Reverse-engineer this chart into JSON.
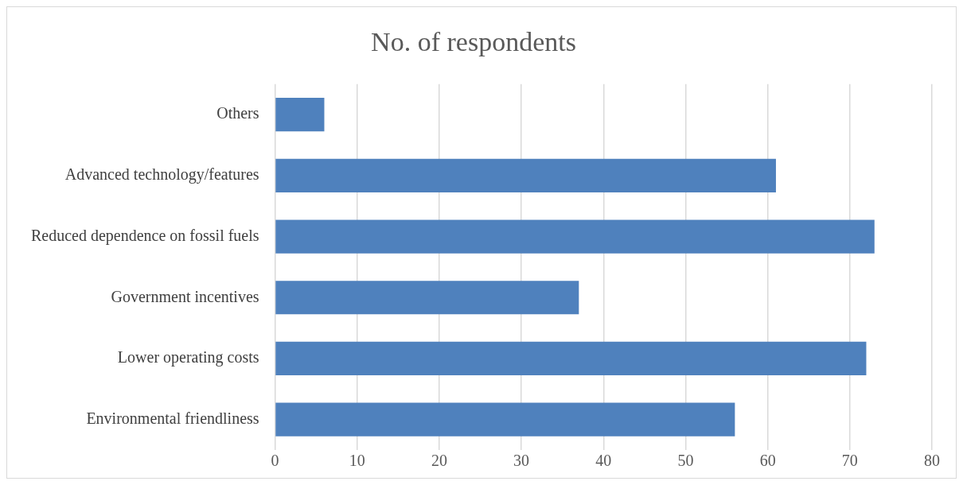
{
  "chart_data": {
    "type": "bar",
    "orientation": "horizontal",
    "title": "No. of respondents",
    "categories": [
      "Others",
      "Advanced technology/features",
      "Reduced dependence on fossil fuels",
      "Government incentives",
      "Lower operating costs",
      "Environmental friendliness"
    ],
    "values": [
      6,
      61,
      73,
      37,
      72,
      56
    ],
    "color": "#4f81bd",
    "xlim": [
      0,
      80
    ],
    "xticks": [
      0,
      10,
      20,
      30,
      40,
      50,
      60,
      70,
      80
    ],
    "grid": "x",
    "legend": false
  }
}
